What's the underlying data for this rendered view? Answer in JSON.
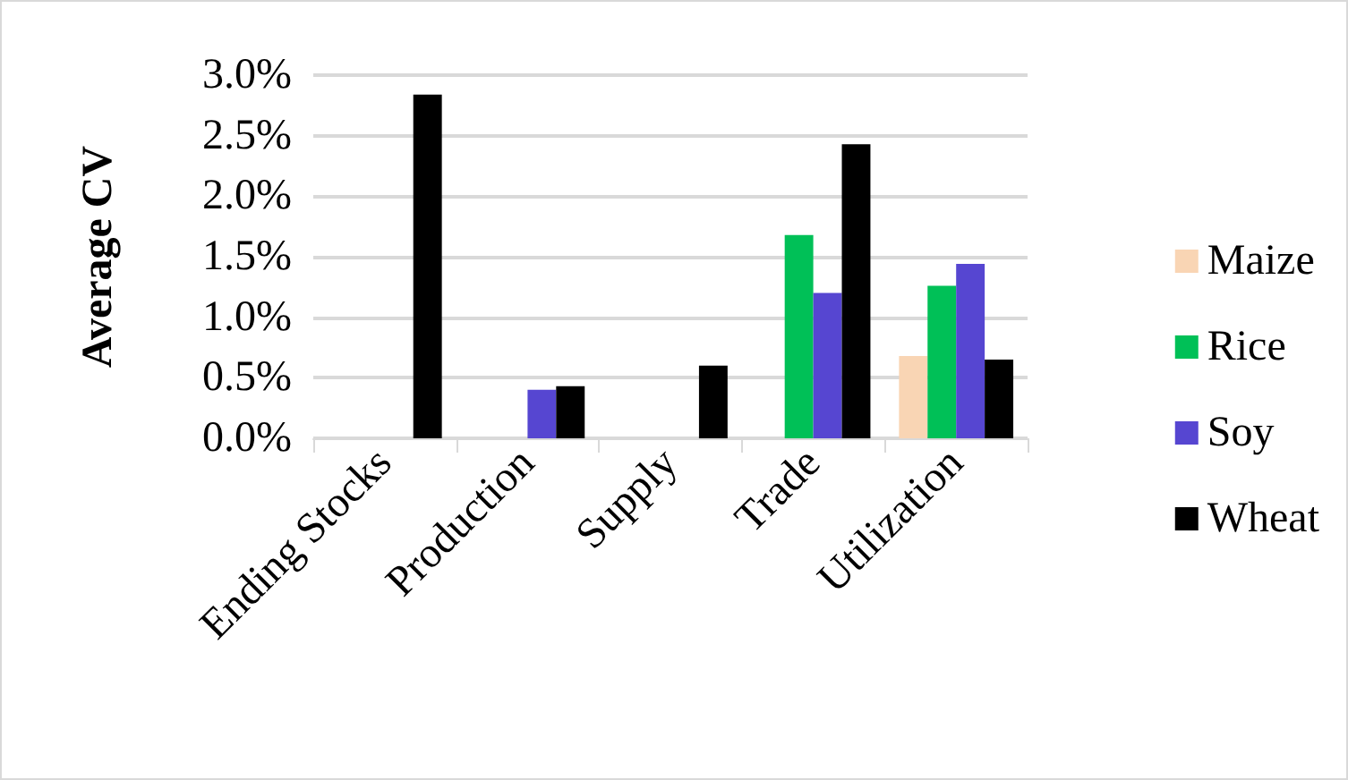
{
  "chart_data": {
    "type": "bar",
    "ylabel": "Average CV",
    "categories": [
      "Ending Stocks",
      "Production",
      "Supply",
      "Trade",
      "Utilization"
    ],
    "series": [
      {
        "name": "Maize",
        "color": "#f9d5b4",
        "values": [
          null,
          null,
          null,
          null,
          0.68
        ]
      },
      {
        "name": "Rice",
        "color": "#00c057",
        "values": [
          null,
          null,
          null,
          1.68,
          1.26
        ]
      },
      {
        "name": "Soy",
        "color": "#5646d1",
        "values": [
          null,
          0.4,
          null,
          1.2,
          1.44
        ]
      },
      {
        "name": "Wheat",
        "color": "#000000",
        "values": [
          2.84,
          0.43,
          0.6,
          2.43,
          0.65
        ]
      }
    ],
    "ylim": [
      0,
      3
    ],
    "yticks": [
      {
        "value": 0,
        "label": "0.0%"
      },
      {
        "value": 0.5,
        "label": "0.5%"
      },
      {
        "value": 1,
        "label": "1.0%"
      },
      {
        "value": 1.5,
        "label": "1.5%"
      },
      {
        "value": 2,
        "label": "2.0%"
      },
      {
        "value": 2.5,
        "label": "2.5%"
      },
      {
        "value": 3,
        "label": "3.0%"
      }
    ],
    "grid": "y",
    "legend": "right"
  }
}
